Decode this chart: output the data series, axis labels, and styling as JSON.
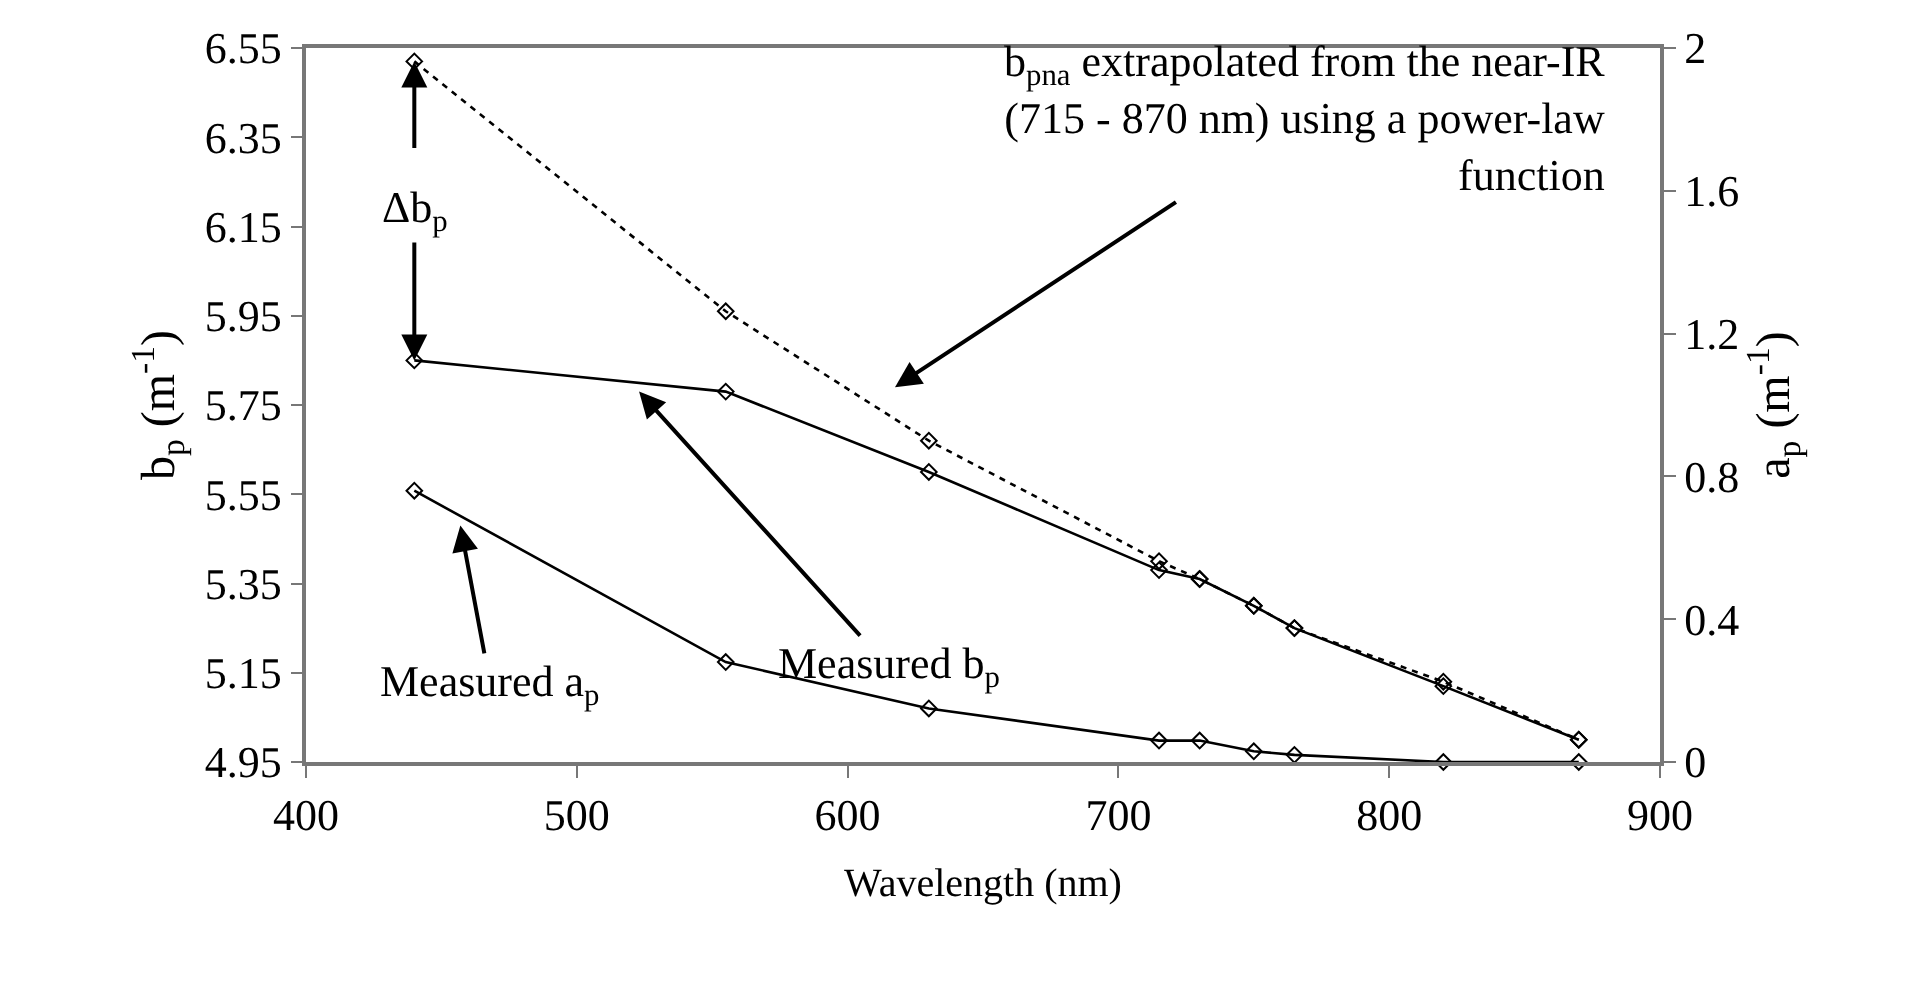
{
  "chart_data": {
    "type": "line",
    "xlabel": "Wavelength (nm)",
    "ylabel": "b$_{p}$ (m$^{-1}$)",
    "y2label": "a$_{p}$ (m$^{-1}$)",
    "x": [
      440,
      555,
      630,
      715,
      730,
      750,
      765,
      820,
      870
    ],
    "series": [
      {
        "color": "#000000",
        "line_style": "dotted",
        "values": [
          6.52,
          5.96,
          5.67,
          5.4,
          5.36,
          5.3,
          5.25,
          5.13,
          5.0
        ]
      },
      {
        "color": "#000000",
        "line_style": "solid",
        "values": [
          5.85,
          5.78,
          5.6,
          5.38,
          5.36,
          5.3,
          5.25,
          5.12,
          5.0
        ]
      },
      {
        "color": "#000000",
        "line_style": "solid",
        "axis": "y2",
        "values": [
          0.76,
          0.28,
          0.15,
          0.06,
          0.06,
          0.03,
          0.02,
          0,
          0
        ]
      }
    ],
    "marker": "diamond",
    "xlim": [
      400,
      900
    ],
    "xticks": [
      400,
      500,
      600,
      700,
      800,
      900
    ],
    "ylim": [
      4.95,
      6.55
    ],
    "yticks": [
      4.95,
      5.15,
      5.35,
      5.55,
      5.75,
      5.95,
      6.15,
      6.35,
      6.55
    ],
    "y2lim": [
      0,
      2
    ],
    "y2ticks": [
      0,
      0.4,
      0.8,
      1.2,
      1.6,
      2
    ],
    "annotations": [
      "b$_{pna}$ extrapolated from the near-IR\n(715 - 870 nm) using a power-law\nfunction",
      {
        "text": "Measured b$_{p}$",
        "x": 523,
        "y": 5.78
      },
      {
        "text": "Measured a$_{p}$",
        "x": 457,
        "y": 5.48
      },
      {
        "text": "Δb$_{p}$",
        "x": 440,
        "y": 5.85
      }
    ]
  }
}
